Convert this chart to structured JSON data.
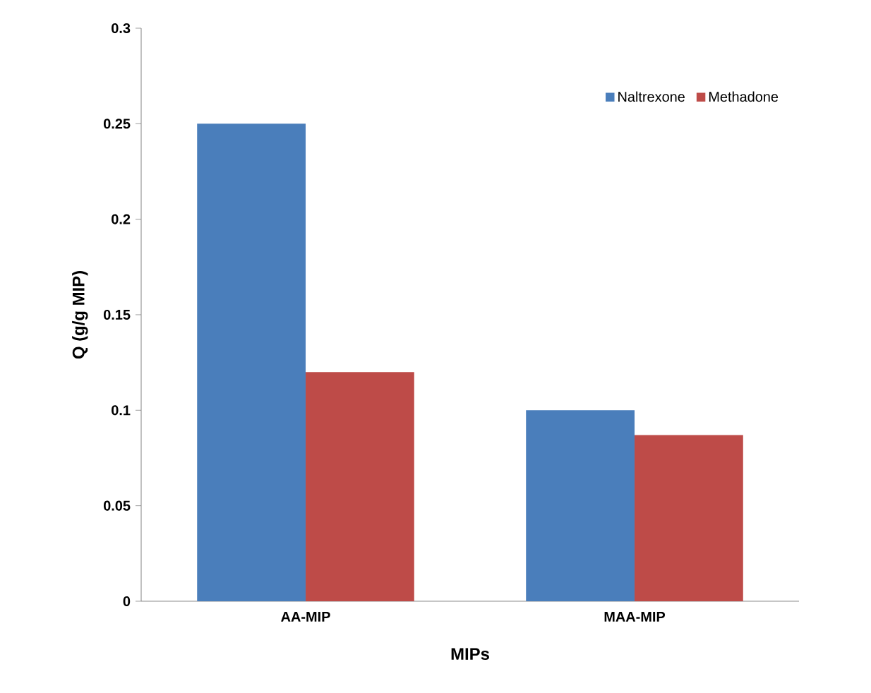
{
  "chart_data": {
    "type": "bar",
    "xlabel": "MIPs",
    "ylabel": "Q (g/g MIP)",
    "categories": [
      "AA-MIP",
      "MAA-MIP"
    ],
    "series": [
      {
        "name": "Naltrexone",
        "color": "#4a7ebb",
        "values": [
          0.25,
          0.1
        ]
      },
      {
        "name": "Methadone",
        "color": "#be4b48",
        "values": [
          0.12,
          0.087
        ]
      }
    ],
    "ylim": [
      0,
      0.3
    ],
    "yticks": [
      0,
      0.05,
      0.1,
      0.15,
      0.2,
      0.25,
      0.3
    ],
    "grid": false,
    "legend": "top right"
  }
}
